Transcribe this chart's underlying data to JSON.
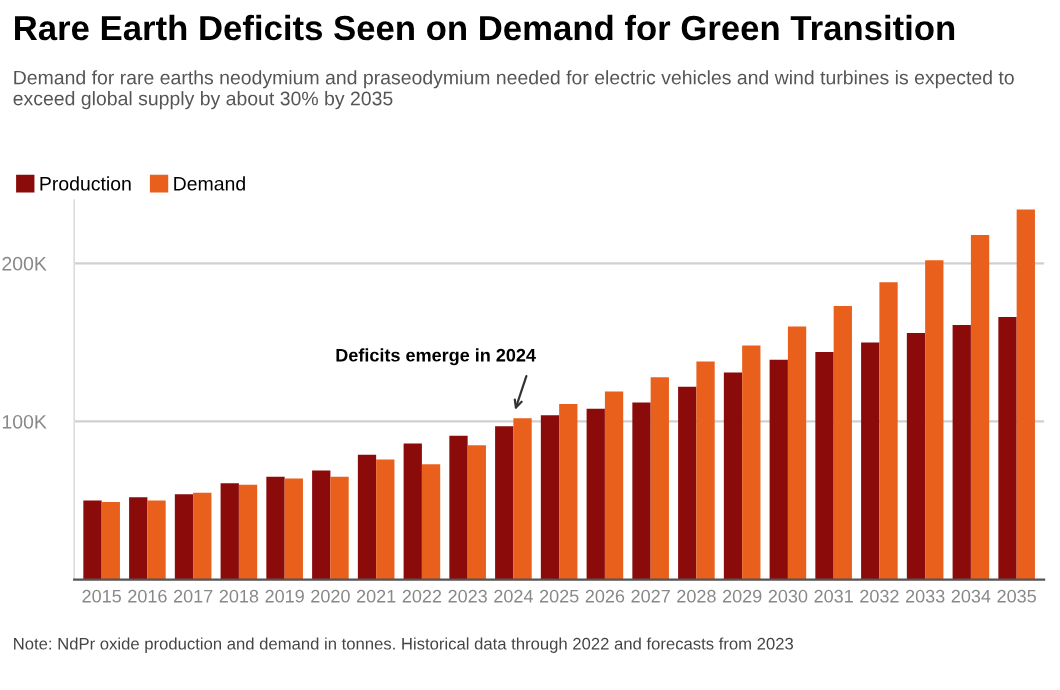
{
  "chart_data": {
    "type": "bar",
    "title": "Rare Earth Deficits Seen on Demand for Green Transition",
    "subtitle": "Demand for rare earths neodymium and praseodymium needed for electric vehicles and wind turbines is expected to exceed global supply by about 30% by 2035",
    "categories": [
      "2015",
      "2016",
      "2017",
      "2018",
      "2019",
      "2020",
      "2021",
      "2022",
      "2023",
      "2024",
      "2025",
      "2026",
      "2027",
      "2028",
      "2029",
      "2030",
      "2031",
      "2032",
      "2033",
      "2034",
      "2035"
    ],
    "series": [
      {
        "name": "Production",
        "color": "#8b0a0a",
        "values": [
          50000,
          52000,
          54000,
          61000,
          65000,
          69000,
          79000,
          86000,
          91000,
          97000,
          104000,
          108000,
          112000,
          122000,
          131000,
          139000,
          144000,
          150000,
          156000,
          161000,
          166000
        ]
      },
      {
        "name": "Demand",
        "color": "#e8601c",
        "values": [
          49000,
          50000,
          55000,
          60000,
          64000,
          65000,
          76000,
          73000,
          85000,
          102000,
          111000,
          119000,
          128000,
          138000,
          148000,
          160000,
          173000,
          188000,
          202000,
          218000,
          234000
        ]
      }
    ],
    "ylim": [
      0,
      240000
    ],
    "yticks": [
      {
        "value": 100000,
        "label": "100K"
      },
      {
        "value": 200000,
        "label": "200K"
      }
    ],
    "grid": "y",
    "legend": "top left",
    "annotations": [
      {
        "text": "Deficits emerge in 2024",
        "x": "2024",
        "y": 104000
      },
      "Note: NdPr oxide production and demand in tonnes. Historical data through 2022 and forecasts from 2023"
    ]
  }
}
